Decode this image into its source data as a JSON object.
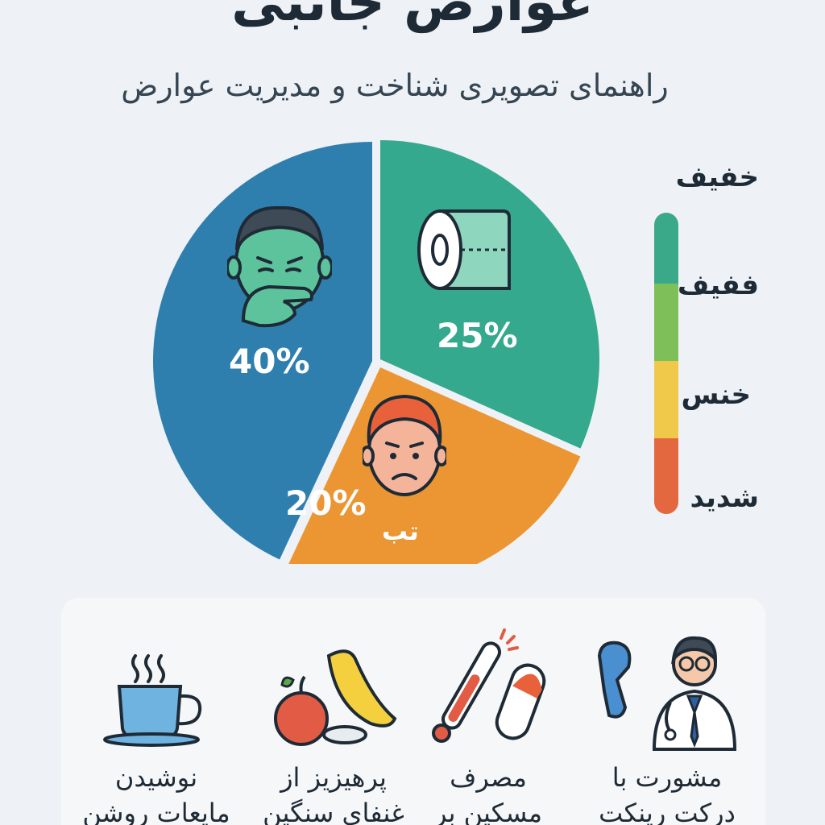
{
  "header": {
    "title": "عوارض جانبی",
    "subtitle": "راهنمای تصویری شناخت و مدیریت عوارض"
  },
  "chart_data": {
    "type": "pie",
    "slices": [
      {
        "label": "",
        "value": 40,
        "display": "40%",
        "color": "#2f7fae",
        "icon": "nauseous-face-icon"
      },
      {
        "label": "",
        "value": 25,
        "display": "25%",
        "color": "#35a98d",
        "icon": "toilet-paper-icon"
      },
      {
        "label": "تب",
        "value": 20,
        "display": "20%",
        "color": "#eb9633",
        "icon": "sad-face-icon"
      }
    ]
  },
  "severity_scale": {
    "levels": [
      {
        "label": "خفیف",
        "color": "#3aa98a"
      },
      {
        "label": "ففیف",
        "color": "#7fbf5a"
      },
      {
        "label": "خنس",
        "color": "#f1c94a"
      },
      {
        "label": "شدید",
        "color": "#e4683f"
      }
    ]
  },
  "tips": [
    {
      "label_line1": "نوشیدن",
      "label_line2": "مایعات روشن",
      "icon": "tea-cup-icon"
    },
    {
      "label_line1": "پرهیزیز از",
      "label_line2": "غنفای سنگین",
      "icon": "fruit-icon"
    },
    {
      "label_line1": "مصرف",
      "label_line2": "مسکین بر",
      "icon": "thermometer-pill-icon"
    },
    {
      "label_line1": "مشورت با",
      "label_line2": "درکت رینکت",
      "icon": "doctor-icon"
    }
  ]
}
